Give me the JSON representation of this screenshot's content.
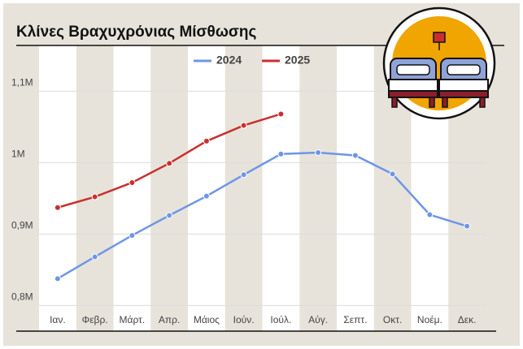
{
  "chart_data": {
    "type": "line",
    "title": "Κλίνες Βραχυχρόνιας Μίσθωσης",
    "categories": [
      "Ιαν.",
      "Φεβρ.",
      "Μάρτ.",
      "Απρ.",
      "Μάιος",
      "Ιούν.",
      "Ιούλ.",
      "Αύγ.",
      "Σεπτ.",
      "Οκτ.",
      "Νοέμ.",
      "Δεκ."
    ],
    "series": [
      {
        "name": "2024",
        "color": "#6d95e8",
        "values": [
          0.8375,
          0.868,
          0.898,
          0.926,
          0.953,
          0.983,
          1.012,
          1.014,
          1.01,
          0.984,
          0.927,
          0.911
        ]
      },
      {
        "name": "2025",
        "color": "#c9302c",
        "values": [
          0.937,
          0.952,
          0.972,
          0.999,
          1.03,
          1.052,
          1.068,
          null,
          null,
          null,
          null,
          null
        ]
      }
    ],
    "ylim": [
      0.764,
      1.164
    ],
    "yticks": [
      {
        "value": 0.8,
        "label": "0,8M"
      },
      {
        "value": 0.9,
        "label": "0,9M"
      },
      {
        "value": 1,
        "label": "1M"
      },
      {
        "value": 1.1,
        "label": "1,1M"
      }
    ],
    "grid": true,
    "legend": "top"
  }
}
